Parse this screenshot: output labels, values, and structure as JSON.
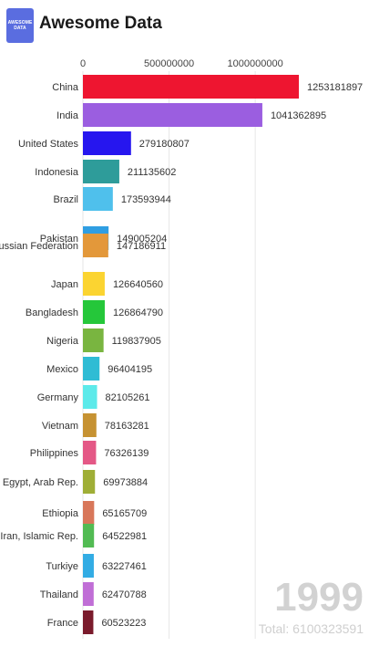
{
  "header": {
    "logo_text": "AWESOME DATA",
    "title": "Awesome Data"
  },
  "overlay": {
    "year": "1999",
    "total": "Total: 6100323591"
  },
  "chart_data": {
    "type": "bar",
    "orientation": "horizontal",
    "title": "",
    "xlabel": "",
    "ylabel": "",
    "xlim": [
      0,
      1253181897
    ],
    "xticks": [
      0,
      500000000,
      1000000000
    ],
    "xtick_labels": [
      "0",
      "500000000",
      "1000000000"
    ],
    "grid": true,
    "categories": [
      "China",
      "India",
      "United States",
      "Indonesia",
      "Brazil",
      "Pakistan",
      "Russian Federation",
      "Japan",
      "Bangladesh",
      "Nigeria",
      "Mexico",
      "Germany",
      "Vietnam",
      "Philippines",
      "Egypt, Arab Rep.",
      "Ethiopia",
      "Iran, Islamic Rep.",
      "Turkiye",
      "Thailand",
      "France"
    ],
    "values": [
      1253181897,
      1041362895,
      279180807,
      211135602,
      173593944,
      149005204,
      147186911,
      126640560,
      126864790,
      119837905,
      96404195,
      82105261,
      78163281,
      76326139,
      69973884,
      65165709,
      64522981,
      63227461,
      62470788,
      60523223
    ],
    "value_labels": [
      "1253181897",
      "1041362895",
      "279180807",
      "211135602",
      "173593944",
      "149005204",
      "147186911",
      "126640560",
      "126864790",
      "119837905",
      "96404195",
      "82105261",
      "78163281",
      "76326139",
      "69973884",
      "65165709",
      "64522981",
      "63227461",
      "62470788",
      "60523223"
    ],
    "colors": [
      "#ee1530",
      "#9b5ee0",
      "#2616ef",
      "#2e9c9a",
      "#4fc0ec",
      "#2f9ee2",
      "#e3983a",
      "#fbd431",
      "#25c73a",
      "#79b540",
      "#2fbcd4",
      "#5ceaea",
      "#c69232",
      "#e45886",
      "#9fae36",
      "#d8775a",
      "#52bb53",
      "#32ace4",
      "#c06ed6",
      "#7a1b2c"
    ]
  }
}
